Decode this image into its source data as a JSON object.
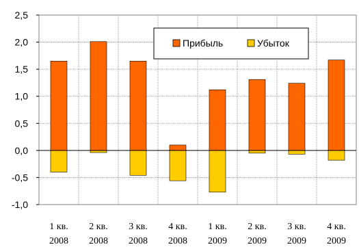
{
  "chart_data": {
    "type": "bar",
    "stacked": true,
    "categories": [
      [
        "1 кв.",
        "2008"
      ],
      [
        "2 кв.",
        "2008"
      ],
      [
        "3 кв.",
        "2008"
      ],
      [
        "4 кв.",
        "2008"
      ],
      [
        "1 кв.",
        "2009"
      ],
      [
        "2 кв.",
        "2009"
      ],
      [
        "3 кв.",
        "2009"
      ],
      [
        "4 кв.",
        "2009"
      ]
    ],
    "series": [
      {
        "name": "Прибыль",
        "color": "#FF6600",
        "values": [
          1.65,
          2.01,
          1.65,
          0.1,
          1.12,
          1.31,
          1.24,
          1.67
        ]
      },
      {
        "name": "Убыток",
        "color": "#FFCC00",
        "values": [
          -0.4,
          -0.04,
          -0.46,
          -0.56,
          -0.77,
          -0.05,
          -0.07,
          -0.18
        ]
      }
    ],
    "yticks": [
      "2,5",
      "2,0",
      "1,5",
      "1,0",
      "0,5",
      "0,0",
      "-0,5",
      "-1,0"
    ],
    "ylim": [
      -1.0,
      2.5
    ],
    "grid": true,
    "legend_position": "top-right"
  }
}
